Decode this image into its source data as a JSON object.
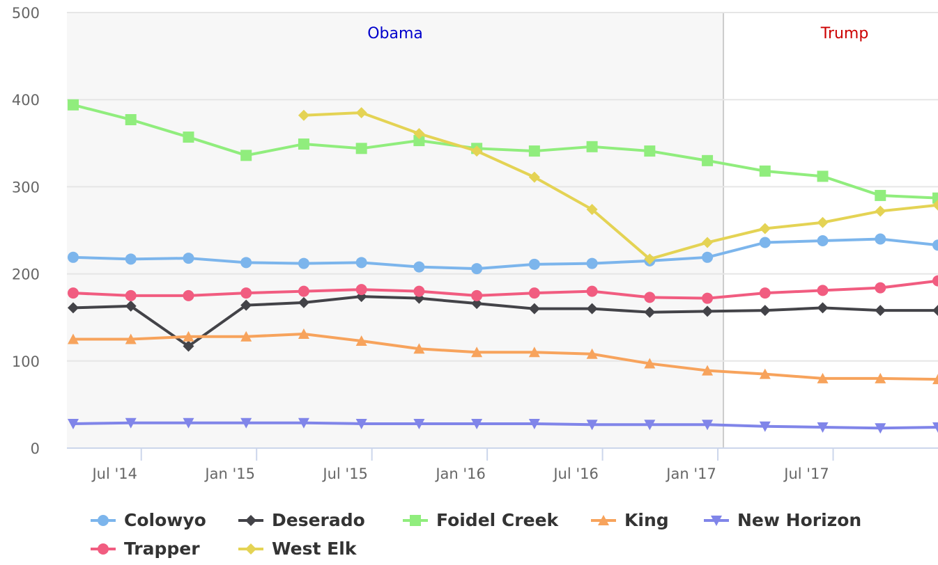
{
  "chart_data": {
    "type": "line",
    "x_type": "date",
    "x_tick_labels": [
      "Jul '14",
      "Jan '15",
      "Jul '15",
      "Jan '16",
      "Jul '16",
      "Jan '17",
      "Jul '17"
    ],
    "y_tick_labels": [
      "0",
      "100",
      "200",
      "300",
      "400",
      "500"
    ],
    "ylim": [
      0,
      500
    ],
    "grid": true,
    "legend_position": "bottom",
    "bands": [
      {
        "label": "Obama",
        "color": "#0000cc",
        "fill": "#f7f7f7"
      },
      {
        "label": "Trump",
        "color": "#cc0000",
        "fill": "#ffffff"
      }
    ],
    "x": [
      "2014-04",
      "2014-07",
      "2014-10",
      "2015-01",
      "2015-04",
      "2015-07",
      "2015-10",
      "2016-01",
      "2016-04",
      "2016-07",
      "2016-10",
      "2017-01",
      "2017-04",
      "2017-07",
      "2017-10",
      "2018-01"
    ],
    "series": [
      {
        "name": "Colowyo",
        "color": "#7cb5ec",
        "marker": "circle",
        "values": [
          219,
          217,
          218,
          213,
          212,
          213,
          208,
          206,
          211,
          212,
          215,
          219,
          236,
          238,
          240,
          233
        ]
      },
      {
        "name": "Deserado",
        "color": "#434348",
        "marker": "diamond",
        "values": [
          161,
          163,
          117,
          164,
          167,
          174,
          172,
          166,
          160,
          160,
          156,
          157,
          158,
          161,
          158,
          158
        ]
      },
      {
        "name": "Foidel Creek",
        "color": "#90ed7d",
        "marker": "square",
        "values": [
          394,
          377,
          357,
          336,
          349,
          344,
          353,
          344,
          341,
          346,
          341,
          330,
          318,
          312,
          290,
          287
        ]
      },
      {
        "name": "King",
        "color": "#f7a35c",
        "marker": "triangle",
        "values": [
          125,
          125,
          128,
          128,
          131,
          123,
          114,
          110,
          110,
          108,
          97,
          89,
          85,
          80,
          80,
          79
        ]
      },
      {
        "name": "New Horizon",
        "color": "#8085e9",
        "marker": "triangle-down",
        "values": [
          28,
          29,
          29,
          29,
          29,
          28,
          28,
          28,
          28,
          27,
          27,
          27,
          25,
          24,
          23,
          24
        ]
      },
      {
        "name": "Trapper",
        "color": "#f15c80",
        "marker": "circle",
        "values": [
          178,
          175,
          175,
          178,
          180,
          182,
          180,
          175,
          178,
          180,
          173,
          172,
          178,
          181,
          184,
          192
        ]
      },
      {
        "name": "West Elk",
        "color": "#e4d354",
        "marker": "diamond",
        "values": [
          null,
          null,
          null,
          null,
          382,
          385,
          361,
          341,
          311,
          274,
          217,
          236,
          252,
          259,
          272,
          279
        ]
      }
    ]
  }
}
